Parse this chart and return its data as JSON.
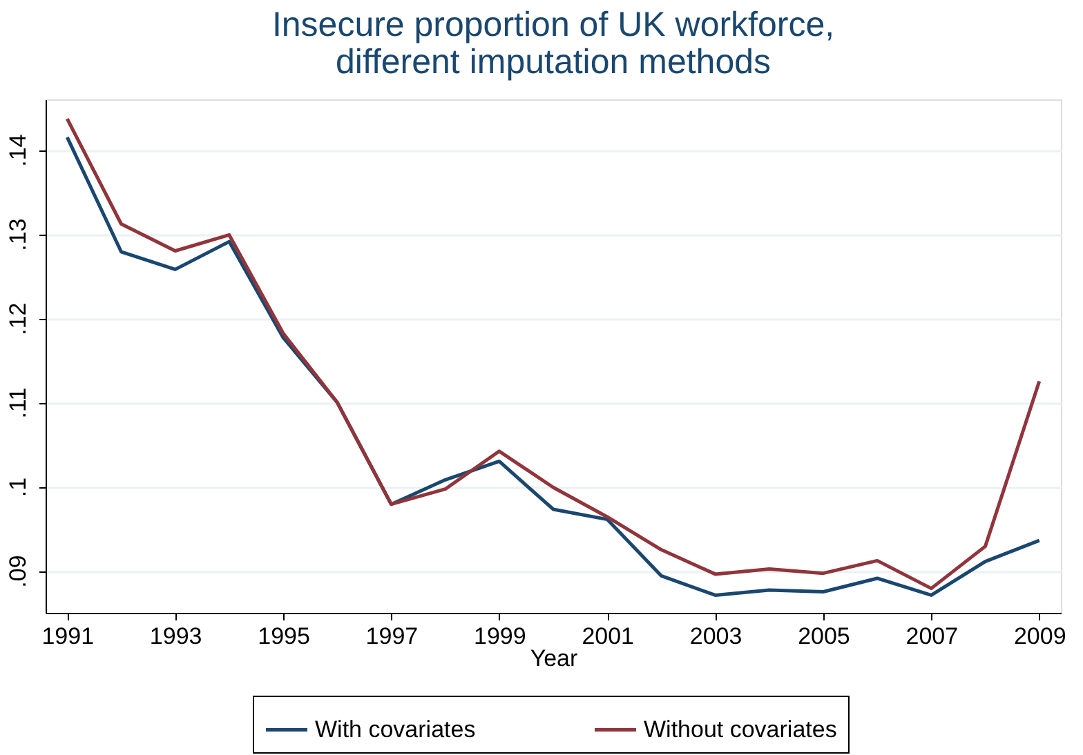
{
  "chart_data": {
    "type": "line",
    "title": [
      "Insecure proportion of UK workforce,",
      "different imputation methods"
    ],
    "xlabel": "Year",
    "x": [
      1991,
      1992,
      1993,
      1994,
      1995,
      1996,
      1997,
      1998,
      1999,
      2000,
      2001,
      2002,
      2003,
      2004,
      2005,
      2006,
      2007,
      2008,
      2009
    ],
    "series": [
      {
        "name": "With covariates",
        "color": "#1a476f",
        "values": [
          0.1415,
          0.1279,
          0.1258,
          0.1291,
          0.1177,
          0.11,
          0.0979,
          0.1008,
          0.103,
          0.0973,
          0.0961,
          0.0894,
          0.0871,
          0.0877,
          0.0875,
          0.0891,
          0.0871,
          0.0911,
          0.0936
        ]
      },
      {
        "name": "Without covariates",
        "color": "#90353b",
        "values": [
          0.1437,
          0.1312,
          0.128,
          0.1299,
          0.1182,
          0.11,
          0.0979,
          0.0997,
          0.1042,
          0.0999,
          0.0964,
          0.0925,
          0.0896,
          0.0902,
          0.0897,
          0.0912,
          0.0879,
          0.0929,
          0.1125
        ]
      }
    ],
    "xlim": [
      1990.6,
      2009.4
    ],
    "xticks": [
      1991,
      1993,
      1995,
      1997,
      1999,
      2001,
      2003,
      2005,
      2007,
      2009
    ],
    "ylim": [
      0.085,
      0.146
    ],
    "yticks": [
      {
        "value": 0.09,
        "label": ".09"
      },
      {
        "value": 0.1,
        "label": ".1"
      },
      {
        "value": 0.11,
        "label": ".11"
      },
      {
        "value": 0.12,
        "label": ".12"
      },
      {
        "value": 0.13,
        "label": ".13"
      },
      {
        "value": 0.14,
        "label": ".14"
      }
    ],
    "grid": "y",
    "legend": "bottom",
    "marker": "none",
    "line_style": "solid"
  }
}
